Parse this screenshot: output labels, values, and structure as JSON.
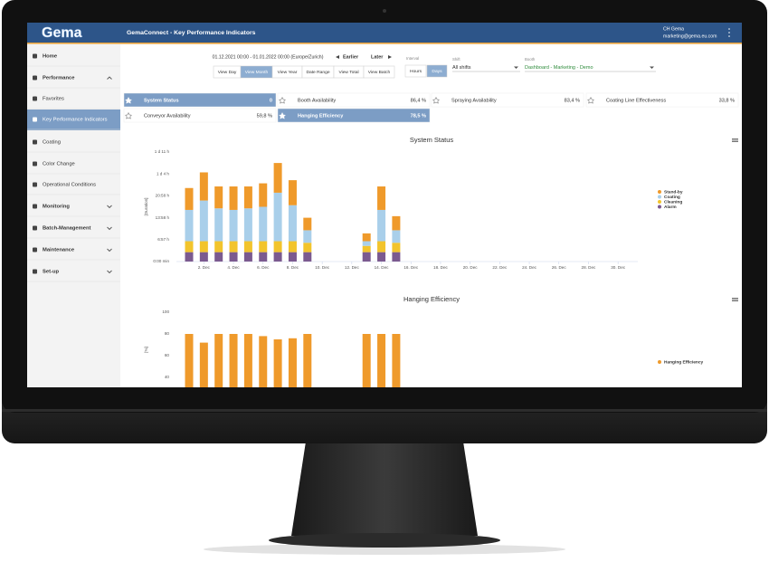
{
  "header": {
    "logo": "Gema",
    "title": "GemaConnect - Key Performance Indicators",
    "user": "CH Gema",
    "email": "marketing@gema.eu.com"
  },
  "sidebar": {
    "items": [
      "Home",
      "Performance",
      "Favorites",
      "Key Performance Indicators",
      "Coating",
      "Color Change",
      "Operational Conditions",
      "Monitoring",
      "Batch-Management",
      "Maintenance",
      "Set-up"
    ]
  },
  "toolbar": {
    "range": "01.12.2021 00:00 - 01.01.2022 00:00 (Europe/Zurich)",
    "earlier": "Earlier",
    "later": "Later",
    "views": [
      "View Day",
      "View Month",
      "View Year",
      "Date Range",
      "View Total",
      "View Batch"
    ],
    "interval_label": "Interval",
    "intervals": [
      "Hours",
      "Days"
    ],
    "shift_label": "Shift",
    "shift": "All shifts",
    "booth_label": "Booth",
    "booth": "Dashboard - Marketing - Demo"
  },
  "kpis": [
    {
      "name": "System Status",
      "value": "0"
    },
    {
      "name": "Booth Availability",
      "value": "86,4 %"
    },
    {
      "name": "Spraying Availability",
      "value": "83,4 %"
    },
    {
      "name": "Coating Line Effectiveness",
      "value": "33,8 %"
    },
    {
      "name": "Conveyor Availability",
      "value": "59,8 %"
    },
    {
      "name": "Hanging Efficiency",
      "value": "78,5 %"
    }
  ],
  "chart_data": [
    {
      "type": "bar",
      "stacked": true,
      "title": "System Status",
      "y_label": "[Duration]",
      "categories": [
        null,
        "2. Dec",
        null,
        "4. Dec",
        null,
        "6. Dec",
        null,
        "8. Dec",
        null,
        "10. Dec",
        null,
        "12. Dec",
        null,
        "14. Dec",
        null,
        "16. Dec",
        null,
        "18. Dec",
        null,
        "20. Dec",
        null,
        "22. Dec",
        null,
        "24. Dec",
        null,
        "26. Dec",
        null,
        "28. Dec",
        null,
        "30. Dec",
        null
      ],
      "series": [
        {
          "name": "Alarm",
          "color": "#7b5a8f",
          "values": [
            3,
            3,
            3,
            3,
            3,
            3,
            3,
            3,
            3,
            null,
            null,
            null,
            3,
            3,
            3,
            null,
            null,
            null,
            null,
            null,
            null,
            null,
            null,
            null,
            null,
            null,
            null,
            null,
            null,
            null,
            null
          ]
        },
        {
          "name": "Cleaning",
          "color": "#f2c42c",
          "values": [
            3.5,
            3.5,
            3.5,
            3.5,
            3.5,
            3.5,
            3.5,
            3.5,
            3,
            null,
            null,
            null,
            2,
            3.5,
            3,
            null,
            null,
            null,
            null,
            null,
            null,
            null,
            null,
            null,
            null,
            null,
            null,
            null,
            null,
            null,
            null
          ]
        },
        {
          "name": "Coating",
          "color": "#a9cfea",
          "values": [
            10,
            13,
            10.5,
            10,
            10.5,
            11,
            15.5,
            11.5,
            4,
            null,
            null,
            null,
            1.5,
            10,
            4,
            null,
            null,
            null,
            null,
            null,
            null,
            null,
            null,
            null,
            null,
            null,
            null,
            null,
            null,
            null,
            null
          ]
        },
        {
          "name": "Stand-by",
          "color": "#ef9a2b",
          "values": [
            7,
            9,
            7,
            7.5,
            7,
            7.5,
            9.5,
            8,
            4,
            null,
            null,
            null,
            2.5,
            7.5,
            4.5,
            null,
            null,
            null,
            null,
            null,
            null,
            null,
            null,
            null,
            null,
            null,
            null,
            null,
            null,
            null,
            null
          ]
        }
      ],
      "ylim": [
        0,
        35
      ],
      "yticks": [
        {
          "value": 0,
          "label": "0:00 min"
        },
        {
          "value": 6.95,
          "label": "6:57 h"
        },
        {
          "value": 13.97,
          "label": "13:58 h"
        },
        {
          "value": 20.97,
          "label": "20:58 h"
        },
        {
          "value": 28,
          "label": "1 d 4 h"
        },
        {
          "value": 35,
          "label": "1 d 11 h"
        }
      ],
      "grid": false,
      "legend": "right"
    },
    {
      "type": "bar",
      "title": "Hanging Efficiency",
      "y_label": "[%]",
      "categories": [
        null,
        null,
        null,
        null,
        null,
        null,
        null,
        null,
        null,
        null,
        null,
        null,
        null,
        null,
        null,
        null,
        null,
        null,
        null,
        null,
        null,
        null,
        null,
        null,
        null,
        null,
        null,
        null,
        null,
        null,
        null
      ],
      "series": [
        {
          "name": "Hanging Efficiency",
          "color": "#ef9a2b",
          "values": [
            80,
            72,
            80,
            80,
            80,
            78,
            75,
            76,
            80,
            null,
            null,
            null,
            80,
            80,
            80,
            null,
            null,
            null,
            null,
            null,
            null,
            null,
            null,
            null,
            null,
            null,
            null,
            null,
            null,
            null,
            null
          ]
        }
      ],
      "ylim": [
        0,
        100
      ],
      "yticks": [
        40,
        60,
        80,
        100
      ],
      "grid": false,
      "legend": "right"
    }
  ]
}
